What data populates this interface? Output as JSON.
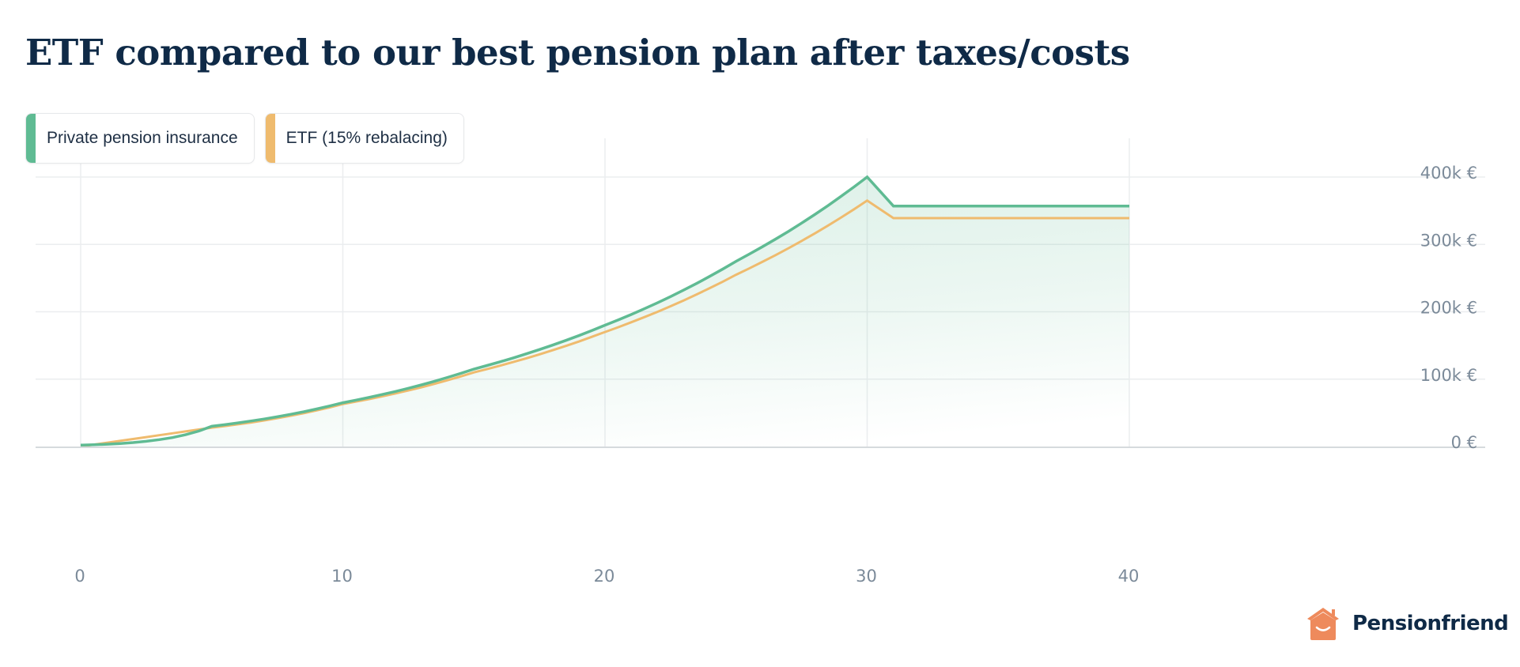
{
  "header": {
    "title": "ETF compared to our best pension plan after taxes/costs"
  },
  "legend": [
    {
      "label": "Private pension insurance",
      "color": "#5fbb93"
    },
    {
      "label": "ETF (15% rebalacing)",
      "color": "#efbb6e"
    }
  ],
  "axes": {
    "y_ticks": [
      "0 €",
      "100k €",
      "200k €",
      "300k €",
      "400k €"
    ],
    "x_ticks": [
      "0",
      "10",
      "20",
      "30",
      "40"
    ]
  },
  "brand": {
    "name": "Pensionfriend",
    "logo_color": "#ee8a5c",
    "icon": "house-smile-icon"
  },
  "chart_data": {
    "type": "line",
    "title": "ETF compared to our best pension plan after taxes/costs",
    "xlabel": "",
    "ylabel": "",
    "xlim": [
      0,
      40
    ],
    "ylim": [
      0,
      400000
    ],
    "x_ticks": [
      0,
      10,
      20,
      30,
      40
    ],
    "y_ticks": [
      0,
      100000,
      200000,
      300000,
      400000
    ],
    "y_tick_labels": [
      "0 €",
      "100k €",
      "200k €",
      "300k €",
      "400k €"
    ],
    "grid": true,
    "legend_position": "top-left",
    "y_axis_position": "right",
    "x": [
      0,
      5,
      10,
      15,
      20,
      25,
      30,
      31,
      35,
      40
    ],
    "series": [
      {
        "name": "Private pension insurance",
        "color": "#5fbb93",
        "fill": "gradient",
        "values": [
          2000,
          30000,
          65000,
          115000,
          180000,
          275000,
          400000,
          357000,
          357000,
          357000
        ]
      },
      {
        "name": "ETF (15% rebalacing)",
        "color": "#efbb6e",
        "values": [
          0,
          28000,
          63000,
          110000,
          170000,
          255000,
          365000,
          339000,
          339000,
          339000
        ]
      }
    ]
  }
}
